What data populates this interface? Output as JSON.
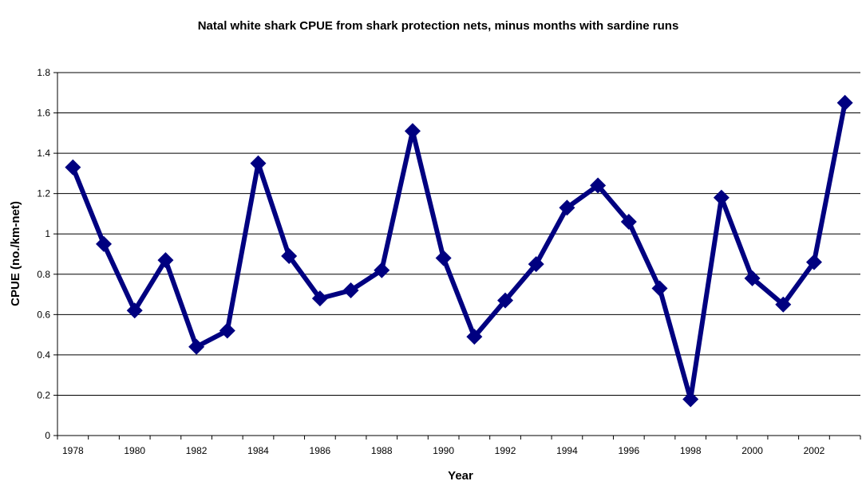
{
  "chart_data": {
    "type": "line",
    "title": "Natal white shark CPUE from shark protection nets, minus months with sardine runs",
    "xlabel": "Year",
    "ylabel": "CPUE (no./km-net)",
    "x": [
      1978,
      1979,
      1980,
      1981,
      1982,
      1983,
      1984,
      1985,
      1986,
      1987,
      1988,
      1989,
      1990,
      1991,
      1992,
      1993,
      1994,
      1995,
      1996,
      1997,
      1998,
      1999,
      2000,
      2001,
      2002,
      2003
    ],
    "x_tick_labels": [
      "1978",
      "1980",
      "1982",
      "1984",
      "1986",
      "1988",
      "1990",
      "1992",
      "1994",
      "1996",
      "1998",
      "2000",
      "2002"
    ],
    "ylim": [
      0,
      1.8
    ],
    "y_ticks": [
      "0",
      "0.2",
      "0.4",
      "0.6",
      "0.8",
      "1",
      "1.2",
      "1.4",
      "1.6",
      "1.8"
    ],
    "series": [
      {
        "values": [
          1.33,
          0.95,
          0.62,
          0.87,
          0.44,
          0.52,
          1.35,
          0.89,
          0.68,
          0.72,
          0.82,
          1.51,
          0.88,
          0.49,
          0.67,
          0.85,
          1.13,
          1.24,
          1.06,
          0.73,
          0.18,
          1.18,
          0.78,
          0.65,
          0.86,
          1.65
        ],
        "color": "#000080",
        "marker": "diamond"
      }
    ],
    "grid": "horizontal",
    "legend": "none"
  }
}
